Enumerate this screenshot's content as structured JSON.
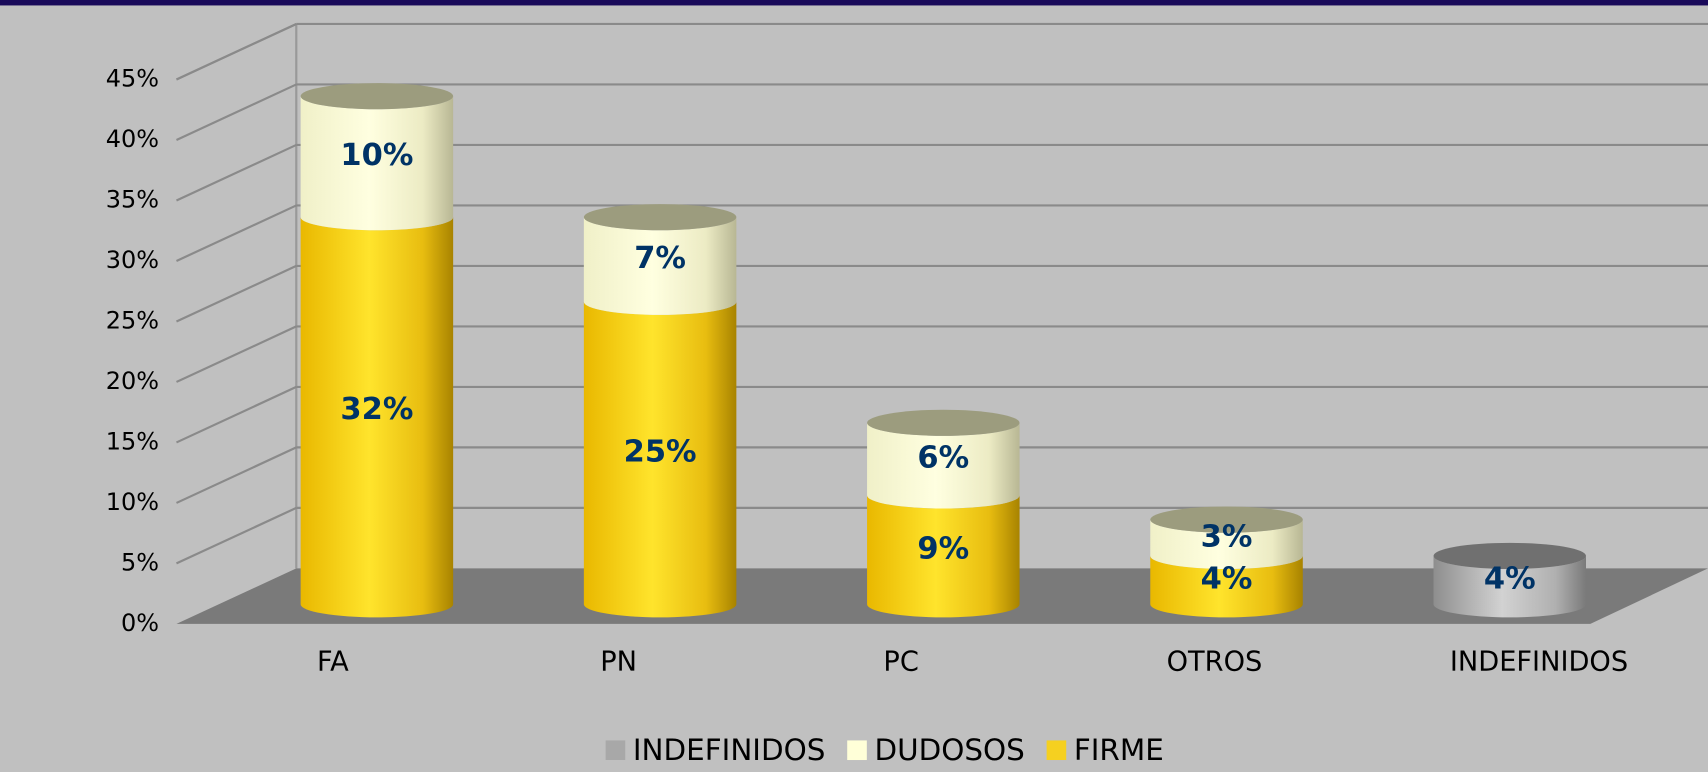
{
  "chart_data": {
    "type": "bar3d_stacked",
    "categories": [
      "FA",
      "PN",
      "PC",
      "OTROS",
      "INDEFINIDOS"
    ],
    "series": [
      {
        "name": "INDEFINIDOS",
        "color": "#a8a8a8",
        "values": [
          null,
          null,
          null,
          null,
          4
        ],
        "value_labels": [
          null,
          null,
          null,
          null,
          "4%"
        ]
      },
      {
        "name": "DUDOSOS",
        "color": "#ffffd8",
        "values": [
          10,
          7,
          6,
          3,
          null
        ],
        "value_labels": [
          "10%",
          "7%",
          "6%",
          "3%",
          null
        ]
      },
      {
        "name": "FIRME",
        "color": "#f5d020",
        "values": [
          32,
          25,
          9,
          4,
          null
        ],
        "value_labels": [
          "32%",
          "25%",
          "9%",
          "4%",
          null
        ]
      }
    ],
    "ylim": [
      0,
      45
    ],
    "yticks": [
      {
        "value": 0,
        "label": "0%"
      },
      {
        "value": 5,
        "label": "5%"
      },
      {
        "value": 10,
        "label": "10%"
      },
      {
        "value": 15,
        "label": "15%"
      },
      {
        "value": 20,
        "label": "20%"
      },
      {
        "value": 25,
        "label": "25%"
      },
      {
        "value": 30,
        "label": "30%"
      },
      {
        "value": 35,
        "label": "35%"
      },
      {
        "value": 40,
        "label": "40%"
      },
      {
        "value": 45,
        "label": "45%"
      }
    ],
    "grid": true,
    "legend": "bottom"
  }
}
